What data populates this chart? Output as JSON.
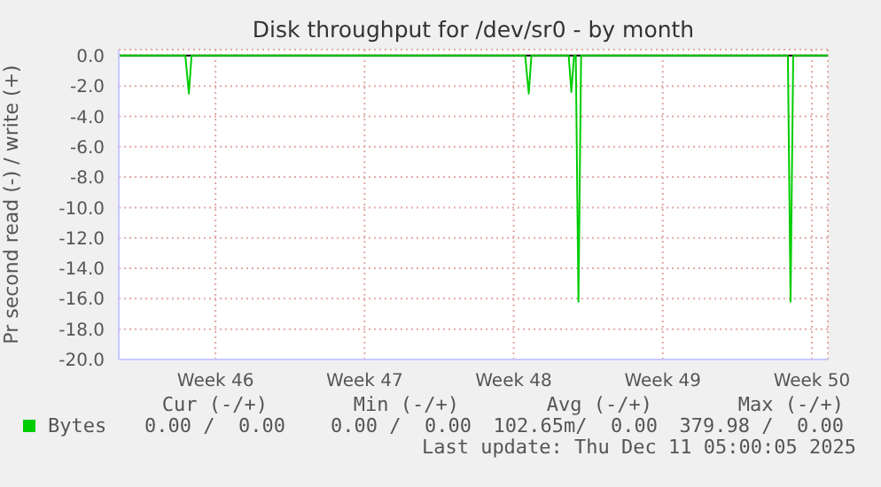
{
  "chart_data": {
    "type": "line",
    "title": "Disk throughput for /dev/sr0 - by month",
    "ylabel": "Pr second read (-) / write (+)",
    "series": [
      {
        "name": "Bytes",
        "color": "#00cc00",
        "x": [
          "2025-11-08T23:00",
          "2025-11-12T02:00",
          "2025-11-12T06:00",
          "2025-11-12T09:00",
          "2025-11-28T01:00",
          "2025-11-28T05:00",
          "2025-11-28T08:00",
          "2025-11-30T02:00",
          "2025-11-30T05:00",
          "2025-11-30T08:00",
          "2025-11-30T10:00",
          "2025-11-30T13:00",
          "2025-11-30T16:00",
          "2025-12-10T09:00",
          "2025-12-10T12:00",
          "2025-12-10T15:00",
          "2025-12-12T06:00"
        ],
        "values": [
          0,
          0,
          -2.5,
          0,
          0,
          -2.5,
          0,
          0,
          -2.4,
          0,
          0,
          -16.2,
          0,
          0,
          -16.2,
          0,
          0
        ]
      }
    ],
    "xlim": [
      "2025-11-08T23:00",
      "2025-12-12T06:00"
    ],
    "xticks": [
      {
        "value": "2025-11-13T12:00",
        "label": "Week 46"
      },
      {
        "value": "2025-11-20T12:00",
        "label": "Week 47"
      },
      {
        "value": "2025-11-27T12:00",
        "label": "Week 48"
      },
      {
        "value": "2025-12-04T12:00",
        "label": "Week 49"
      },
      {
        "value": "2025-12-11T12:00",
        "label": "Week 50"
      }
    ],
    "ylim": [
      -20,
      0.4
    ],
    "yticks": [
      {
        "value": 0,
        "label": "0.0"
      },
      {
        "value": -2,
        "label": "-2.0"
      },
      {
        "value": -4,
        "label": "-4.0"
      },
      {
        "value": -6,
        "label": "-6.0"
      },
      {
        "value": -8,
        "label": "-8.0"
      },
      {
        "value": -10,
        "label": "-10.0"
      },
      {
        "value": -12,
        "label": "-12.0"
      },
      {
        "value": -14,
        "label": "-14.0"
      },
      {
        "value": -16,
        "label": "-16.0"
      },
      {
        "value": -18,
        "label": "-18.0"
      },
      {
        "value": -20,
        "label": "-20.0"
      }
    ],
    "ref_lines": [
      {
        "axis": "y",
        "value": 0,
        "color": "#000000"
      }
    ],
    "grid": true,
    "legend": "bottom left",
    "marker": "none",
    "line_style": "solid",
    "annotations": [
      "Cur (-/+)",
      "Min (-/+)",
      "Avg (-/+)",
      "Max (-/+)",
      "0.00 /  0.00",
      "0.00 /  0.00",
      "102.65m/  0.00",
      "379.98 /  0.00",
      "Last update: Thu Dec 11 05:00:05 2025"
    ]
  }
}
